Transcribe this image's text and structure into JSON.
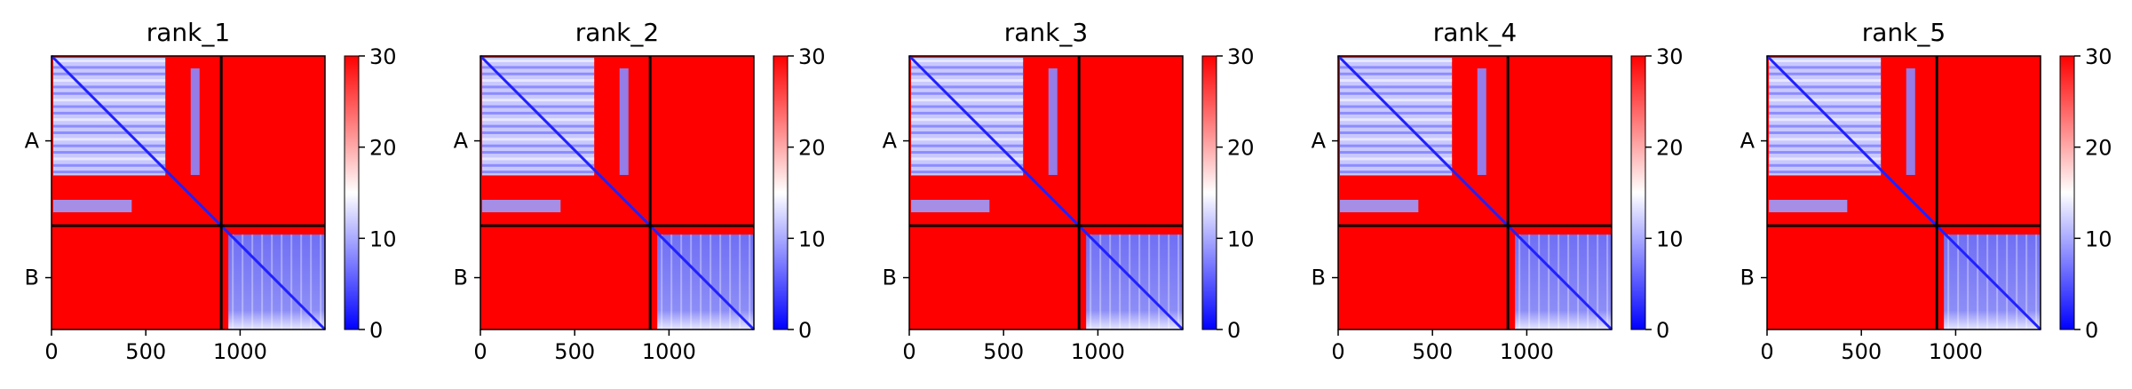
{
  "chart_data": [
    {
      "type": "heatmap",
      "title": "rank_1",
      "x_ticks": [
        0,
        500,
        1000
      ],
      "xlim": [
        0,
        1450
      ],
      "y_chain_labels": [
        "A",
        "B"
      ],
      "chain_boundary": 900,
      "colorbar": {
        "min": 0,
        "max": 30,
        "ticks": [
          0,
          10,
          20,
          30
        ],
        "colors": [
          "#0000ff",
          "#ffffff",
          "#ff0000"
        ]
      }
    },
    {
      "type": "heatmap",
      "title": "rank_2",
      "x_ticks": [
        0,
        500,
        1000
      ],
      "xlim": [
        0,
        1450
      ],
      "y_chain_labels": [
        "A",
        "B"
      ],
      "chain_boundary": 900,
      "colorbar": {
        "min": 0,
        "max": 30,
        "ticks": [
          0,
          10,
          20,
          30
        ],
        "colors": [
          "#0000ff",
          "#ffffff",
          "#ff0000"
        ]
      }
    },
    {
      "type": "heatmap",
      "title": "rank_3",
      "x_ticks": [
        0,
        500,
        1000
      ],
      "xlim": [
        0,
        1450
      ],
      "y_chain_labels": [
        "A",
        "B"
      ],
      "chain_boundary": 900,
      "colorbar": {
        "min": 0,
        "max": 30,
        "ticks": [
          0,
          10,
          20,
          30
        ],
        "colors": [
          "#0000ff",
          "#ffffff",
          "#ff0000"
        ]
      }
    },
    {
      "type": "heatmap",
      "title": "rank_4",
      "x_ticks": [
        0,
        500,
        1000
      ],
      "xlim": [
        0,
        1450
      ],
      "y_chain_labels": [
        "A",
        "B"
      ],
      "chain_boundary": 900,
      "colorbar": {
        "min": 0,
        "max": 30,
        "ticks": [
          0,
          10,
          20,
          30
        ],
        "colors": [
          "#0000ff",
          "#ffffff",
          "#ff0000"
        ]
      }
    },
    {
      "type": "heatmap",
      "title": "rank_5",
      "x_ticks": [
        0,
        500,
        1000
      ],
      "xlim": [
        0,
        1450
      ],
      "y_chain_labels": [
        "A",
        "B"
      ],
      "chain_boundary": 900,
      "colorbar": {
        "min": 0,
        "max": 30,
        "ticks": [
          0,
          10,
          20,
          30
        ],
        "colors": [
          "#0000ff",
          "#ffffff",
          "#ff0000"
        ]
      }
    }
  ]
}
